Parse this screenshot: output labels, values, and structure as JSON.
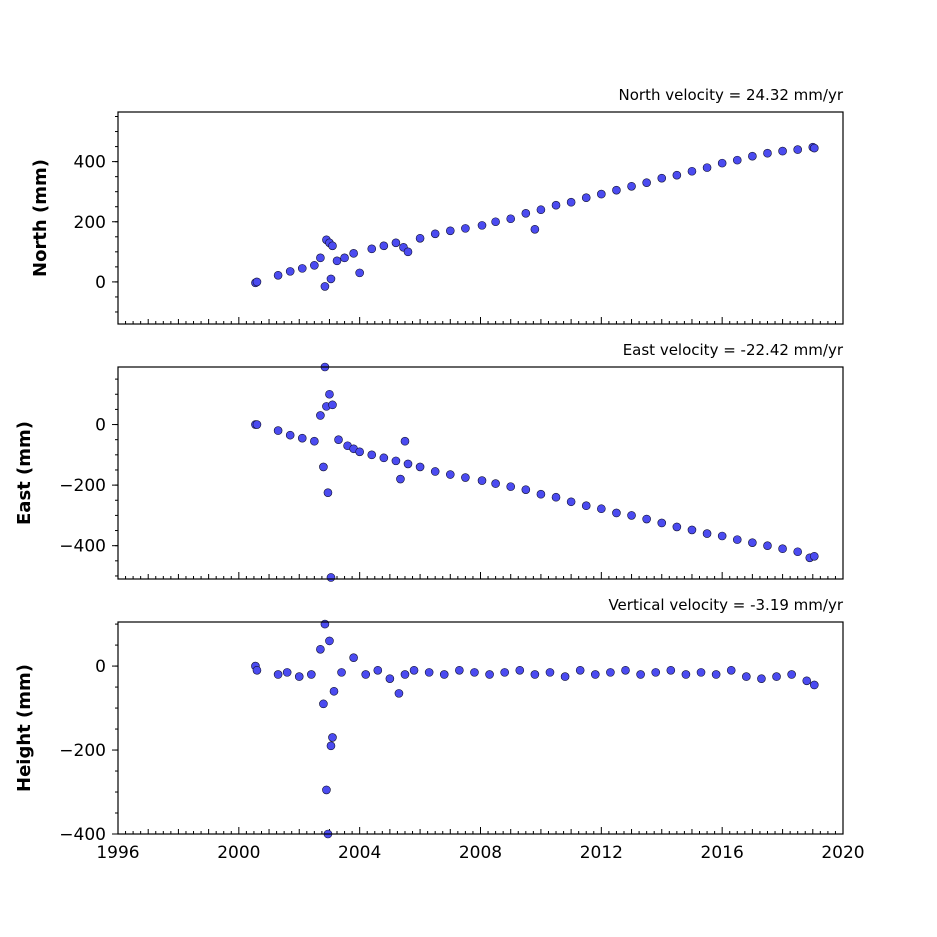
{
  "chart_data": [
    {
      "type": "scatter",
      "title": "North velocity = 24.32 mm/yr",
      "ylabel": "North (mm)",
      "xlim": [
        1996,
        2020
      ],
      "ylim": [
        -140,
        565
      ],
      "yticks": [
        0,
        200,
        400
      ],
      "velocity": 24.32,
      "series": [
        {
          "color": "#4b4bf0",
          "x": [
            2000.55,
            2000.6,
            2001.3,
            2001.7,
            2002.1,
            2002.5,
            2002.7,
            2002.85,
            2002.9,
            2003.0,
            2003.05,
            2003.1,
            2003.25,
            2003.5,
            2003.8,
            2004.0,
            2004.4,
            2004.8,
            2005.2,
            2005.45,
            2005.6,
            2006.0,
            2006.5,
            2007.0,
            2007.5,
            2008.05,
            2008.5,
            2009.0,
            2009.5,
            2009.8,
            2010.0,
            2010.5,
            2011.0,
            2011.5,
            2012.0,
            2012.5,
            2013.0,
            2013.5,
            2014.0,
            2014.5,
            2015.0,
            2015.5,
            2016.0,
            2016.5,
            2017.0,
            2017.5,
            2018.0,
            2018.5,
            2019.0,
            2019.05
          ],
          "y": [
            -3,
            0,
            22,
            35,
            45,
            55,
            80,
            -15,
            140,
            130,
            10,
            120,
            70,
            80,
            95,
            30,
            110,
            120,
            130,
            115,
            100,
            145,
            160,
            170,
            178,
            188,
            200,
            210,
            228,
            175,
            240,
            255,
            265,
            280,
            292,
            305,
            318,
            330,
            345,
            355,
            368,
            380,
            395,
            405,
            418,
            428,
            435,
            440,
            448,
            445
          ]
        }
      ]
    },
    {
      "type": "scatter",
      "title": "East velocity = -22.42 mm/yr",
      "ylabel": "East (mm)",
      "xlim": [
        1996,
        2020
      ],
      "ylim": [
        -510,
        190
      ],
      "yticks": [
        -400,
        -200,
        0
      ],
      "velocity": -22.42,
      "series": [
        {
          "color": "#4b4bf0",
          "x": [
            2000.55,
            2000.6,
            2001.3,
            2001.7,
            2002.1,
            2002.5,
            2002.7,
            2002.8,
            2002.85,
            2002.9,
            2002.95,
            2003.0,
            2003.05,
            2003.1,
            2003.3,
            2003.6,
            2003.8,
            2004.0,
            2004.4,
            2004.8,
            2005.2,
            2005.35,
            2005.5,
            2005.6,
            2006.0,
            2006.5,
            2007.0,
            2007.5,
            2008.05,
            2008.5,
            2009.0,
            2009.5,
            2010.0,
            2010.5,
            2011.0,
            2011.5,
            2012.0,
            2012.5,
            2013.0,
            2013.5,
            2014.0,
            2014.5,
            2015.0,
            2015.5,
            2016.0,
            2016.5,
            2017.0,
            2017.5,
            2018.0,
            2018.5,
            2018.9,
            2019.05
          ],
          "y": [
            0,
            0,
            -20,
            -35,
            -45,
            -55,
            30,
            -140,
            190,
            60,
            -225,
            100,
            -505,
            65,
            -50,
            -70,
            -80,
            -90,
            -100,
            -110,
            -120,
            -180,
            -55,
            -130,
            -140,
            -155,
            -165,
            -175,
            -185,
            -195,
            -205,
            -215,
            -230,
            -240,
            -255,
            -268,
            -278,
            -292,
            -300,
            -312,
            -325,
            -338,
            -348,
            -360,
            -368,
            -380,
            -390,
            -400,
            -410,
            -420,
            -440,
            -435
          ]
        }
      ]
    },
    {
      "type": "scatter",
      "title": "Vertical velocity = -3.19 mm/yr",
      "ylabel": "Height (mm)",
      "xlim": [
        1996,
        2020
      ],
      "xticks": [
        1996,
        2000,
        2004,
        2008,
        2012,
        2016,
        2020
      ],
      "ylim": [
        -400,
        105
      ],
      "yticks": [
        -400,
        -200,
        0
      ],
      "velocity": -3.19,
      "series": [
        {
          "color": "#4b4bf0",
          "x": [
            2000.55,
            2000.6,
            2001.3,
            2001.6,
            2002.0,
            2002.4,
            2002.7,
            2002.8,
            2002.85,
            2002.9,
            2002.95,
            2003.0,
            2003.05,
            2003.1,
            2003.15,
            2003.4,
            2003.8,
            2004.2,
            2004.6,
            2005.0,
            2005.3,
            2005.5,
            2005.8,
            2006.3,
            2006.8,
            2007.3,
            2007.8,
            2008.3,
            2008.8,
            2009.3,
            2009.8,
            2010.3,
            2010.8,
            2011.3,
            2011.8,
            2012.3,
            2012.8,
            2013.3,
            2013.8,
            2014.3,
            2014.8,
            2015.3,
            2015.8,
            2016.3,
            2016.8,
            2017.3,
            2017.8,
            2018.3,
            2018.8,
            2019.05
          ],
          "y": [
            0,
            -10,
            -20,
            -15,
            -25,
            -20,
            40,
            -90,
            100,
            -295,
            -400,
            60,
            -190,
            -170,
            -60,
            -15,
            20,
            -20,
            -10,
            -30,
            -65,
            -20,
            -10,
            -15,
            -20,
            -10,
            -15,
            -20,
            -15,
            -10,
            -20,
            -15,
            -25,
            -10,
            -20,
            -15,
            -10,
            -20,
            -15,
            -10,
            -20,
            -15,
            -20,
            -10,
            -25,
            -30,
            -25,
            -20,
            -35,
            -45
          ]
        }
      ]
    }
  ]
}
